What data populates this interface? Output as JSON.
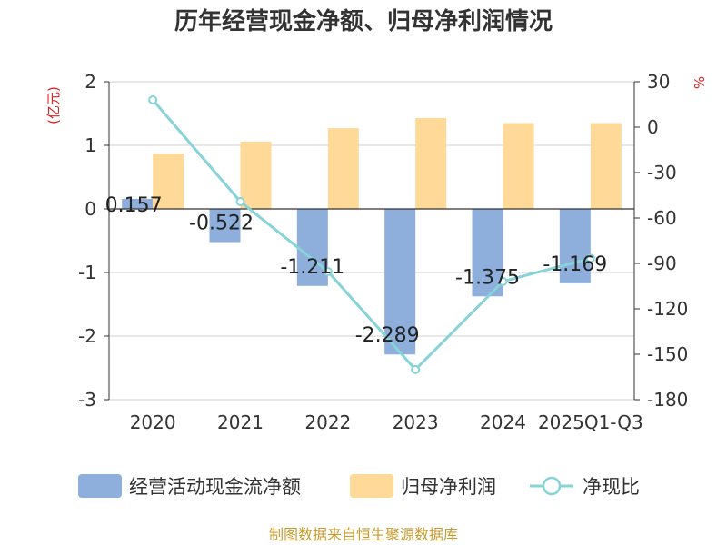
{
  "chart_data": {
    "type": "bar",
    "title": "历年经营现金净额、归母净利润情况",
    "categories": [
      "2020",
      "2021",
      "2022",
      "2023",
      "2024",
      "2025Q1-Q3"
    ],
    "series": [
      {
        "name": "经营活动现金流净额",
        "kind": "bar",
        "axis": "left",
        "color": "#8eaedb",
        "values": [
          0.157,
          -0.522,
          -1.211,
          -2.289,
          -1.375,
          -1.169
        ]
      },
      {
        "name": "归母净利润",
        "kind": "bar",
        "axis": "left",
        "color": "#fed998",
        "values": [
          0.87,
          1.06,
          1.27,
          1.43,
          1.35,
          1.35
        ]
      },
      {
        "name": "净现比",
        "kind": "line",
        "axis": "right",
        "color": "#87d3d8",
        "values": [
          18,
          -49.2,
          -95.4,
          -160.1,
          -101.9,
          -86.6
        ]
      }
    ],
    "data_labels": [
      "0.157",
      "-0.522",
      "-1.211",
      "-2.289",
      "-1.375",
      "-1.169"
    ],
    "left_axis": {
      "unit": "(亿元)",
      "min": -3,
      "max": 2,
      "ticks": [
        2,
        1,
        0,
        -1,
        -2,
        -3
      ]
    },
    "right_axis": {
      "unit": "%",
      "min": -180,
      "max": 30,
      "ticks": [
        30,
        0,
        -30,
        -60,
        -90,
        -120,
        -150,
        -180
      ]
    },
    "grid": true,
    "legend_position": "bottom"
  },
  "source": "制图数据来自恒生聚源数据库"
}
